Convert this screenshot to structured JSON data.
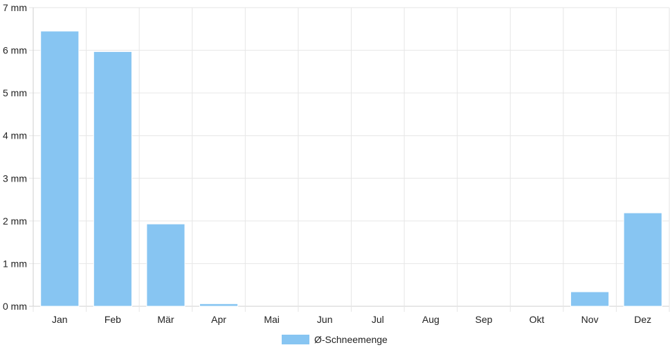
{
  "chart_data": {
    "type": "bar",
    "categories": [
      "Jan",
      "Feb",
      "Mär",
      "Apr",
      "Mai",
      "Jun",
      "Jul",
      "Aug",
      "Sep",
      "Okt",
      "Nov",
      "Dez"
    ],
    "series": [
      {
        "name": "Ø-Schneemenge",
        "values": [
          6.45,
          5.97,
          1.93,
          0.06,
          0,
          0,
          0,
          0,
          0,
          0,
          0.34,
          2.19
        ],
        "color": "#87c5f2"
      }
    ],
    "y_ticks": [
      "0 mm",
      "1 mm",
      "2 mm",
      "3 mm",
      "4 mm",
      "5 mm",
      "6 mm",
      "7 mm"
    ],
    "ylim": [
      0,
      7
    ],
    "unit": "mm",
    "grid": true,
    "legend_position": "bottom-center"
  }
}
